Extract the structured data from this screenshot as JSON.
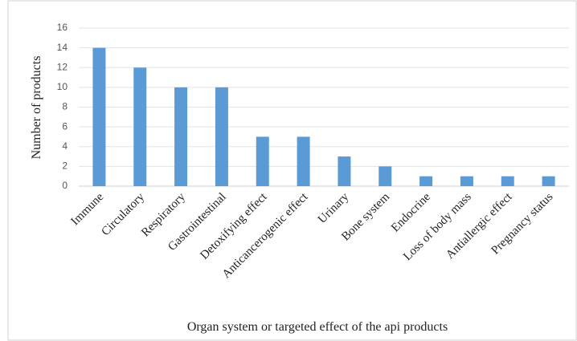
{
  "chart_data": {
    "type": "bar",
    "x_label": "Organ system or targeted effect of the api products",
    "y_label": "Number of products",
    "categories": [
      "Immune",
      "Circulatory",
      "Respiratory",
      "Gastrointestinal",
      "Detoxifying effect",
      "Anticancerogenic effect",
      "Urinary",
      "Bone system",
      "Endocrine",
      "Loss of body mass",
      "Antiallergic effect",
      "Pregnancy status"
    ],
    "values": [
      14,
      12,
      10,
      10,
      5,
      5,
      3,
      2,
      1,
      1,
      1,
      1
    ],
    "color": "#5b9bd5",
    "ylim": [
      0,
      16
    ],
    "yticks": [
      0,
      2,
      4,
      6,
      8,
      10,
      12,
      14,
      16
    ],
    "grid": true
  }
}
